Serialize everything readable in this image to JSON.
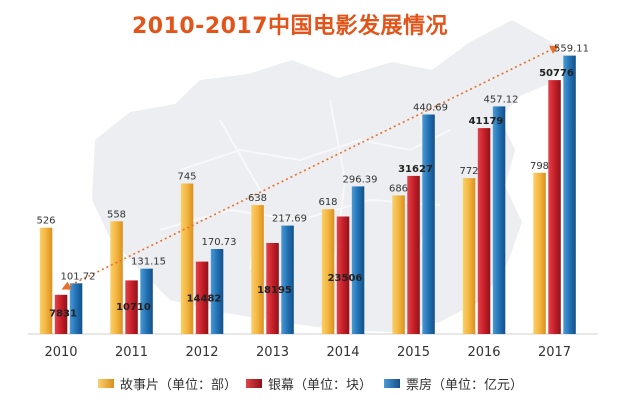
{
  "chart_data": {
    "type": "bar",
    "title": "2010-2017中国电影发展情况",
    "categories": [
      "2010",
      "2011",
      "2012",
      "2013",
      "2014",
      "2015",
      "2016",
      "2017"
    ],
    "series": [
      {
        "name": "故事片（单位：部）",
        "values": [
          526,
          558,
          745,
          638,
          618,
          686,
          772,
          798
        ],
        "labels": [
          "526",
          "558",
          "745",
          "638",
          "618",
          "686",
          "772",
          "798"
        ],
        "color": "#f3b540"
      },
      {
        "name": "银幕（单位：块）",
        "values": [
          7831,
          10710,
          14482,
          18195,
          23506,
          31627,
          41179,
          50776
        ],
        "labels": [
          "7831",
          "10710",
          "14482",
          "18195",
          "23506",
          "31627",
          "41179",
          "50776"
        ],
        "color": "#c8202a"
      },
      {
        "name": "票房（单位：亿元）",
        "values": [
          101.72,
          131.15,
          170.73,
          217.69,
          296.39,
          440.69,
          457.12,
          559.11
        ],
        "labels": [
          "101.72",
          "131.15",
          "170.73",
          "217.69",
          "296.39",
          "440.69",
          "457.12",
          "559.11"
        ],
        "color": "#2372b4"
      }
    ],
    "trend_line": {
      "series": "票房（单位：亿元）",
      "from": "2010",
      "to": "2017",
      "color": "#e8702a"
    },
    "grid": false,
    "legend_position": "bottom"
  }
}
